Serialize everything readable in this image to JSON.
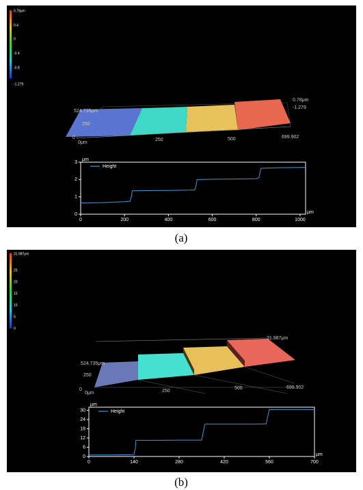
{
  "chart_data": [
    {
      "type": "line",
      "legend": "upper left",
      "x": [
        0,
        100,
        200,
        225,
        232,
        235,
        300,
        400,
        500,
        520,
        527,
        530,
        600,
        700,
        800,
        812,
        818,
        822,
        900,
        1025
      ],
      "series": [
        {
          "name": "Height",
          "color": "#3d9be0",
          "values": [
            0.65,
            0.67,
            0.72,
            0.75,
            1.05,
            1.35,
            1.36,
            1.37,
            1.39,
            1.4,
            1.7,
            2.0,
            2.02,
            2.03,
            2.05,
            2.1,
            2.45,
            2.65,
            2.68,
            2.7
          ]
        }
      ],
      "xlim": [
        0,
        1025
      ],
      "xticks": [
        0,
        200,
        400,
        600,
        800,
        1000
      ],
      "ylim": [
        0,
        3
      ],
      "yticks": [
        0,
        1,
        2,
        3
      ],
      "xlabel": "μm",
      "ylabel": "μm"
    },
    {
      "type": "line",
      "legend": "upper left",
      "x": [
        0,
        70,
        140,
        144,
        146,
        200,
        280,
        350,
        355,
        360,
        420,
        500,
        550,
        555,
        560,
        620,
        700
      ],
      "series": [
        {
          "name": "Height",
          "color": "#3d9be0",
          "values": [
            1,
            1,
            1.2,
            5,
            10.5,
            10.5,
            10.6,
            10.6,
            16,
            21,
            21,
            21,
            21.1,
            26,
            30.5,
            30.5,
            30.5
          ]
        }
      ],
      "xlim": [
        0,
        700
      ],
      "xticks": [
        0,
        140,
        280,
        420,
        560,
        700
      ],
      "ylim": [
        0,
        32
      ],
      "yticks": [
        0,
        6,
        12,
        18,
        24,
        30
      ],
      "xlabel": "μm",
      "ylabel": "μm"
    }
  ],
  "panels": [
    {
      "caption": "(a)",
      "colorbar": [
        "0.78μm",
        "0.4",
        "0",
        "-0.4",
        "-0.8",
        "-1.279"
      ],
      "surface_labels": [
        "524.735μm",
        "250",
        "0",
        "0μm",
        "250",
        "500",
        "699.902",
        "0.78μm",
        "-1.279"
      ]
    },
    {
      "caption": "(b)",
      "colorbar": [
        "31.987μm",
        "25",
        "20",
        "15",
        "10",
        "5",
        "0"
      ],
      "surface_labels": [
        "524.735μm",
        "250",
        "0",
        "0μm",
        "250",
        "500",
        "699.902",
        "31.987μm"
      ]
    }
  ]
}
